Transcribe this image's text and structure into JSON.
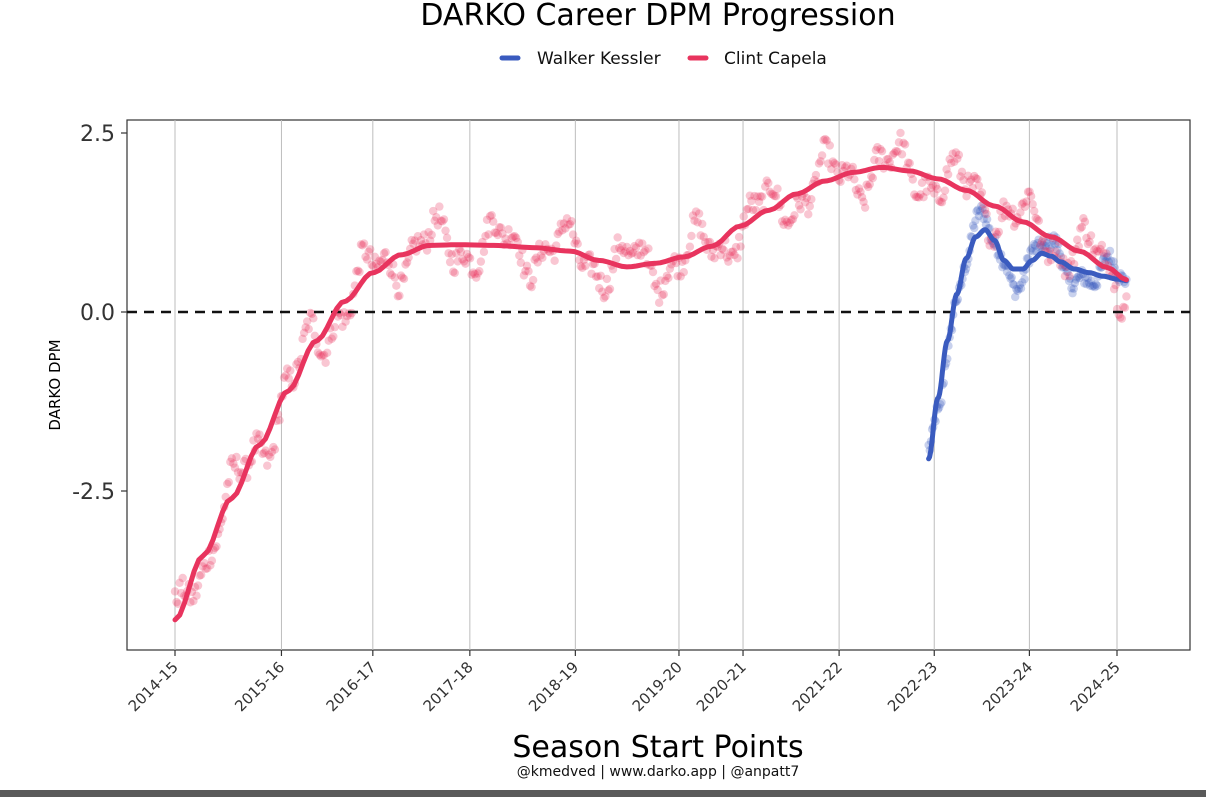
{
  "chart_data": {
    "type": "line",
    "title": "DARKO Career DPM Progression",
    "xlabel": "Season Start Points",
    "ylabel": "DARKO DPM",
    "caption": "@kmedved | www.darko.app | @anpatt7",
    "x_ticks": [
      "2014-15",
      "2015-16",
      "2016-17",
      "2017-18",
      "2018-19",
      "2019-20",
      "2020-21",
      "2021-22",
      "2022-23",
      "2023-24",
      "2024-25"
    ],
    "x_tick_positions": [
      0,
      1.13,
      2.1,
      3.13,
      4.25,
      5.35,
      6.03,
      7.05,
      8.06,
      9.07,
      10.0
    ],
    "y_ticks": [
      2.5,
      0.0,
      -2.5
    ],
    "y_tick_labels": [
      "2.5",
      "0.0",
      "-2.5"
    ],
    "xlim": [
      -0.5,
      10.8
    ],
    "ylim": [
      -4.7,
      2.7
    ],
    "reference_line": {
      "y": 0,
      "style": "dashed"
    },
    "grid": "vertical",
    "legend": {
      "placement": "top-center"
    },
    "series": [
      {
        "name": "Walker Kessler",
        "color": "#3a5bbf",
        "smooth": [
          [
            8.0,
            -2.05
          ],
          [
            8.1,
            -1.2
          ],
          [
            8.2,
            -0.4
          ],
          [
            8.3,
            0.25
          ],
          [
            8.4,
            0.75
          ],
          [
            8.5,
            1.05
          ],
          [
            8.6,
            1.15
          ],
          [
            8.7,
            1.0
          ],
          [
            8.8,
            0.72
          ],
          [
            8.9,
            0.6
          ],
          [
            9.0,
            0.6
          ],
          [
            9.1,
            0.72
          ],
          [
            9.2,
            0.82
          ],
          [
            9.3,
            0.78
          ],
          [
            9.4,
            0.7
          ],
          [
            9.55,
            0.6
          ],
          [
            9.7,
            0.55
          ],
          [
            9.85,
            0.5
          ],
          [
            10.0,
            0.46
          ],
          [
            10.1,
            0.44
          ]
        ]
      },
      {
        "name": "Clint Capela",
        "color": "#e8345e",
        "smooth": [
          [
            0.0,
            -4.3
          ],
          [
            0.3,
            -3.4
          ],
          [
            0.6,
            -2.6
          ],
          [
            0.9,
            -1.85
          ],
          [
            1.2,
            -1.1
          ],
          [
            1.5,
            -0.4
          ],
          [
            1.8,
            0.15
          ],
          [
            2.1,
            0.55
          ],
          [
            2.4,
            0.8
          ],
          [
            2.7,
            0.93
          ],
          [
            3.0,
            0.94
          ],
          [
            3.4,
            0.93
          ],
          [
            3.8,
            0.9
          ],
          [
            4.2,
            0.85
          ],
          [
            4.5,
            0.72
          ],
          [
            4.8,
            0.63
          ],
          [
            5.1,
            0.68
          ],
          [
            5.4,
            0.77
          ],
          [
            5.7,
            0.92
          ],
          [
            6.0,
            1.2
          ],
          [
            6.3,
            1.42
          ],
          [
            6.6,
            1.65
          ],
          [
            6.9,
            1.83
          ],
          [
            7.2,
            1.95
          ],
          [
            7.5,
            2.02
          ],
          [
            7.8,
            1.97
          ],
          [
            8.1,
            1.86
          ],
          [
            8.4,
            1.7
          ],
          [
            8.7,
            1.48
          ],
          [
            9.0,
            1.26
          ],
          [
            9.3,
            1.05
          ],
          [
            9.6,
            0.85
          ],
          [
            9.9,
            0.62
          ],
          [
            10.1,
            0.45
          ]
        ]
      }
    ]
  }
}
